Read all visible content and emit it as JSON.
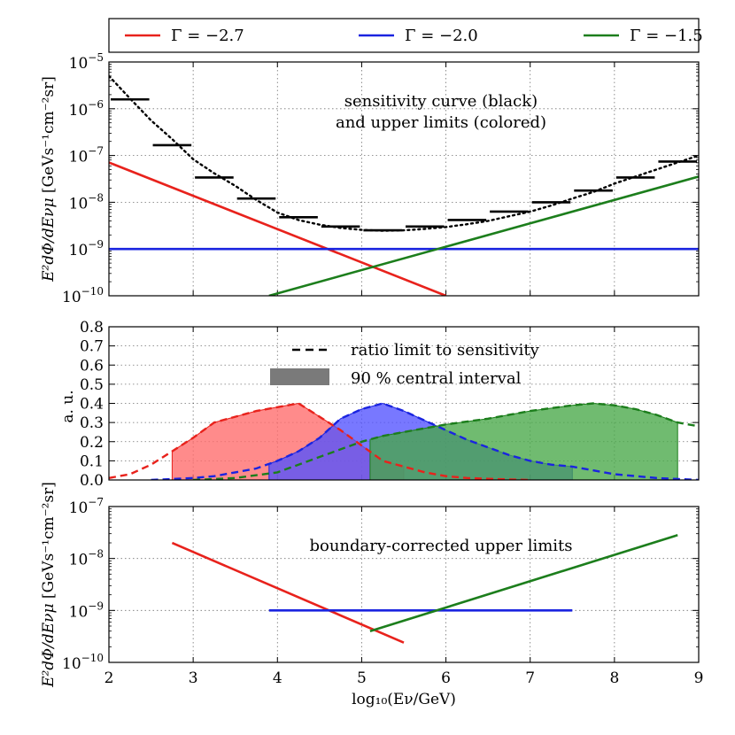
{
  "legend": {
    "placement": "top",
    "entries": [
      {
        "label": "Γ = −2.7",
        "color": "#e8221c"
      },
      {
        "label": "Γ = −2.0",
        "color": "#1a24e0"
      },
      {
        "label": "Γ = −1.5",
        "color": "#1c7e1c"
      }
    ]
  },
  "chart_data": [
    {
      "id": "top",
      "type": "line",
      "scale": "log",
      "xlim": [
        2,
        9
      ],
      "ylim_exp": [
        -10,
        -5
      ],
      "xticks": [
        "2",
        "3",
        "4",
        "5",
        "6",
        "7",
        "8",
        "9"
      ],
      "yticks": [
        {
          "base": "10",
          "exp": "−10"
        },
        {
          "base": "10",
          "exp": "−9"
        },
        {
          "base": "10",
          "exp": "−8"
        },
        {
          "base": "10",
          "exp": "−7"
        },
        {
          "base": "10",
          "exp": "−6"
        },
        {
          "base": "10",
          "exp": "−5"
        }
      ],
      "ylabel_main": "E²dΦ/dEνμ",
      "ylabel_units": "[GeVs⁻¹cm⁻²sr]",
      "annotation": [
        "sensitivity curve (black)",
        "and upper limits (colored)"
      ],
      "grid": true,
      "sensitivity_curve": {
        "color": "#000000",
        "x": [
          2.0,
          2.25,
          2.5,
          2.75,
          3.0,
          3.25,
          3.5,
          3.75,
          4.0,
          4.25,
          4.5,
          4.75,
          5.0,
          5.25,
          5.5,
          5.75,
          6.0,
          6.25,
          6.5,
          6.75,
          7.0,
          7.25,
          7.5,
          7.75,
          8.0,
          8.25,
          8.5,
          8.75,
          9.0
        ],
        "y_log10": [
          -5.3,
          -5.78,
          -6.25,
          -6.65,
          -7.08,
          -7.38,
          -7.65,
          -7.95,
          -8.22,
          -8.38,
          -8.48,
          -8.55,
          -8.59,
          -8.61,
          -8.6,
          -8.57,
          -8.53,
          -8.47,
          -8.4,
          -8.3,
          -8.2,
          -8.07,
          -7.92,
          -7.78,
          -7.6,
          -7.45,
          -7.3,
          -7.15,
          -7.0
        ]
      },
      "sensitivity_bins": {
        "color": "#000000",
        "bins": [
          {
            "x0": 2.0,
            "x1": 2.5,
            "y_log10": -5.8
          },
          {
            "x0": 2.5,
            "x1": 3.0,
            "y_log10": -6.78
          },
          {
            "x0": 3.0,
            "x1": 3.5,
            "y_log10": -7.47
          },
          {
            "x0": 3.5,
            "x1": 4.0,
            "y_log10": -7.92
          },
          {
            "x0": 4.0,
            "x1": 4.5,
            "y_log10": -8.32
          },
          {
            "x0": 4.5,
            "x1": 5.0,
            "y_log10": -8.52
          },
          {
            "x0": 5.0,
            "x1": 5.5,
            "y_log10": -8.6
          },
          {
            "x0": 5.5,
            "x1": 6.0,
            "y_log10": -8.52
          },
          {
            "x0": 6.0,
            "x1": 6.5,
            "y_log10": -8.38
          },
          {
            "x0": 6.5,
            "x1": 7.0,
            "y_log10": -8.2
          },
          {
            "x0": 7.0,
            "x1": 7.5,
            "y_log10": -8.0
          },
          {
            "x0": 7.5,
            "x1": 8.0,
            "y_log10": -7.75
          },
          {
            "x0": 8.0,
            "x1": 8.5,
            "y_log10": -7.47
          },
          {
            "x0": 8.5,
            "x1": 9.0,
            "y_log10": -7.13
          }
        ]
      },
      "series": [
        {
          "name": "Γ = −2.7",
          "color": "#e8221c",
          "x": [
            2.0,
            6.0
          ],
          "y_log10": [
            -7.15,
            -10.0
          ]
        },
        {
          "name": "Γ = −2.0",
          "color": "#1a24e0",
          "x": [
            2.0,
            9.0
          ],
          "y_log10": [
            -9.0,
            -9.0
          ]
        },
        {
          "name": "Γ = −1.5",
          "color": "#1c7e1c",
          "x": [
            3.9,
            9.0
          ],
          "y_log10": [
            -10.0,
            -7.45
          ]
        }
      ]
    },
    {
      "id": "middle",
      "type": "area",
      "scale": "linear",
      "xlim": [
        2,
        9
      ],
      "ylim": [
        0,
        0.8
      ],
      "yticks": [
        "0.0",
        "0.1",
        "0.2",
        "0.3",
        "0.4",
        "0.5",
        "0.6",
        "0.7",
        "0.8"
      ],
      "ylabel": "a. u.",
      "legend": [
        {
          "label": "ratio limit to sensitivity",
          "style": "dashed"
        },
        {
          "label": "90 % central interval",
          "style": "filled"
        }
      ],
      "grid": true,
      "series": [
        {
          "name": "Γ = −2.7",
          "color": "#e8221c",
          "fill": "#ff6a6a",
          "interval": [
            2.75,
            5.5
          ],
          "x": [
            2.0,
            2.25,
            2.5,
            2.75,
            3.0,
            3.25,
            3.5,
            3.75,
            4.0,
            4.25,
            4.5,
            4.75,
            5.0,
            5.25,
            5.5,
            5.75,
            6.0,
            6.25,
            6.5,
            6.75,
            7.0
          ],
          "y": [
            0.01,
            0.03,
            0.08,
            0.15,
            0.22,
            0.3,
            0.33,
            0.36,
            0.38,
            0.4,
            0.33,
            0.26,
            0.18,
            0.1,
            0.07,
            0.04,
            0.02,
            0.01,
            0.006,
            0.003,
            0.0
          ]
        },
        {
          "name": "Γ = −2.0",
          "color": "#1a24e0",
          "fill": "#5252ff",
          "interval": [
            3.9,
            7.5
          ],
          "x": [
            2.5,
            3.0,
            3.25,
            3.5,
            3.75,
            4.0,
            4.25,
            4.5,
            4.75,
            5.0,
            5.25,
            5.5,
            5.75,
            6.0,
            6.25,
            6.5,
            6.75,
            7.0,
            7.25,
            7.5,
            8.0,
            8.5,
            9.0
          ],
          "y": [
            0.0,
            0.01,
            0.02,
            0.04,
            0.06,
            0.1,
            0.15,
            0.22,
            0.32,
            0.37,
            0.4,
            0.36,
            0.31,
            0.26,
            0.21,
            0.17,
            0.13,
            0.1,
            0.08,
            0.07,
            0.03,
            0.01,
            0.0
          ]
        },
        {
          "name": "Γ = −1.5",
          "color": "#1c7e1c",
          "fill": "#48a848",
          "interval": [
            5.1,
            8.75
          ],
          "x": [
            3.0,
            3.5,
            4.0,
            4.25,
            4.5,
            4.75,
            5.0,
            5.25,
            5.5,
            5.75,
            6.0,
            6.5,
            7.0,
            7.5,
            7.75,
            8.0,
            8.25,
            8.5,
            8.75,
            9.0
          ],
          "y": [
            0.0,
            0.01,
            0.04,
            0.08,
            0.12,
            0.16,
            0.2,
            0.23,
            0.25,
            0.27,
            0.29,
            0.32,
            0.36,
            0.39,
            0.4,
            0.39,
            0.37,
            0.34,
            0.3,
            0.28
          ]
        }
      ]
    },
    {
      "id": "bottom",
      "type": "line",
      "scale": "log",
      "xlim": [
        2,
        9
      ],
      "ylim_exp": [
        -10,
        -7
      ],
      "xticks": [
        "2",
        "3",
        "4",
        "5",
        "6",
        "7",
        "8",
        "9"
      ],
      "yticks": [
        {
          "base": "10",
          "exp": "−10"
        },
        {
          "base": "10",
          "exp": "−9"
        },
        {
          "base": "10",
          "exp": "−8"
        },
        {
          "base": "10",
          "exp": "−7"
        }
      ],
      "xlabel": "log₁₀(Eν/GeV)",
      "ylabel_main": "E²dΦ/dEνμ",
      "ylabel_units": "[GeVs⁻¹cm⁻²sr]",
      "annotation": [
        "boundary-corrected upper limits"
      ],
      "grid": true,
      "series": [
        {
          "name": "Γ = −2.7",
          "color": "#e8221c",
          "x": [
            2.75,
            5.5
          ],
          "y_log10": [
            -7.7,
            -9.62
          ]
        },
        {
          "name": "Γ = −2.0",
          "color": "#1a24e0",
          "x": [
            3.9,
            7.5
          ],
          "y_log10": [
            -9.0,
            -9.0
          ]
        },
        {
          "name": "Γ = −1.5",
          "color": "#1c7e1c",
          "x": [
            5.1,
            8.75
          ],
          "y_log10": [
            -9.4,
            -7.55
          ]
        }
      ]
    }
  ]
}
